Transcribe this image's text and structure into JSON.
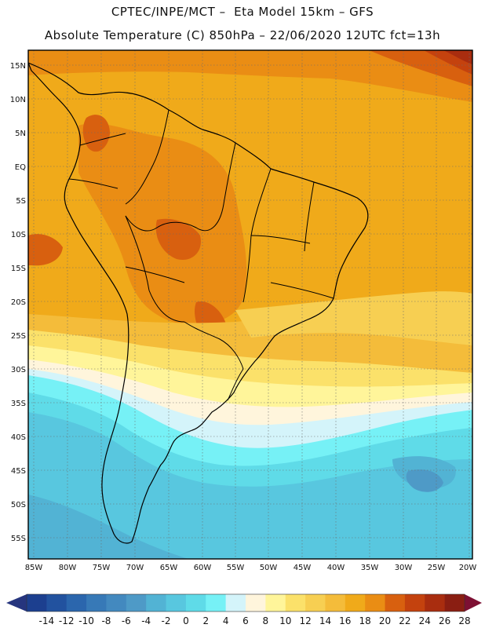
{
  "header": {
    "title_line1": "CPTEC/INPE/MCT –  Eta Model 15km – GFS",
    "title_line2": "Absolute Temperature (C) 850hPa – 22/06/2020 12UTC fct=13h"
  },
  "map": {
    "lat_labels": [
      "15N",
      "10N",
      "5N",
      "EQ",
      "5S",
      "10S",
      "15S",
      "20S",
      "25S",
      "30S",
      "35S",
      "40S",
      "45S",
      "50S",
      "55S"
    ],
    "lon_labels": [
      "85W",
      "80W",
      "75W",
      "70W",
      "65W",
      "60W",
      "55W",
      "50W",
      "45W",
      "40W",
      "35W",
      "30W",
      "25W",
      "20W"
    ]
  },
  "colorbar": {
    "labels": [
      "-14",
      "-12",
      "-10",
      "-8",
      "-6",
      "-4",
      "-2",
      "0",
      "2",
      "4",
      "6",
      "8",
      "10",
      "12",
      "14",
      "16",
      "18",
      "20",
      "22",
      "24",
      "26",
      "28"
    ],
    "colors": [
      "#1c3f8f",
      "#22529f",
      "#2b66ad",
      "#3779b7",
      "#4389bf",
      "#4e9ac7",
      "#52b3d4",
      "#58c7df",
      "#5fdbe8",
      "#76f1f6",
      "#d4f4fa",
      "#fff5dc",
      "#fff59a",
      "#fbe16a",
      "#f7cf52",
      "#f4bc3a",
      "#f0aa1a",
      "#ea8d14",
      "#d8600f",
      "#c4420e",
      "#a92d0f",
      "#8a1e12"
    ],
    "low_arrow_color": "#26357e",
    "high_arrow_color": "#7d1033"
  }
}
